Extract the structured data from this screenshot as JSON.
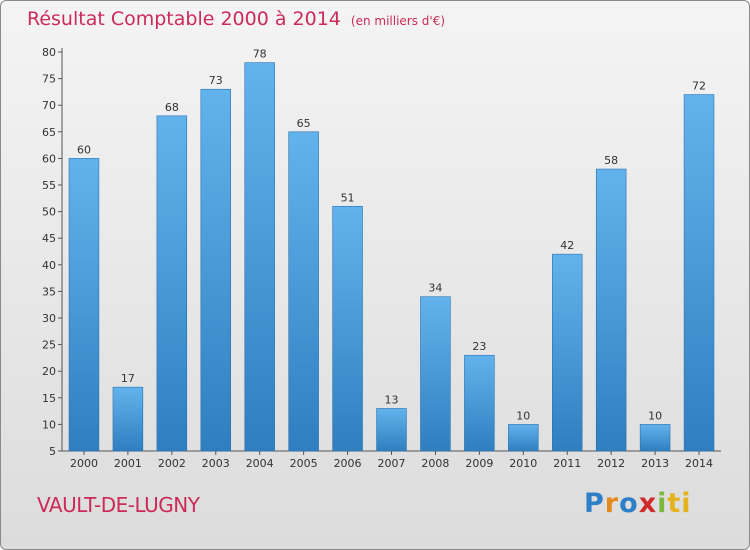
{
  "chart_data": {
    "type": "bar",
    "title": "Résultat Comptable 2000 à 2014",
    "subtitle": "(en milliers d'€)",
    "categories": [
      "2000",
      "2001",
      "2002",
      "2003",
      "2004",
      "2005",
      "2006",
      "2007",
      "2008",
      "2009",
      "2010",
      "2011",
      "2012",
      "2013",
      "2014"
    ],
    "values": [
      60,
      17,
      68,
      73,
      78,
      65,
      51,
      13,
      34,
      23,
      10,
      42,
      58,
      10,
      72
    ],
    "ylim": [
      5,
      80
    ],
    "yticks": [
      5,
      10,
      15,
      20,
      25,
      30,
      35,
      40,
      45,
      50,
      55,
      60,
      65,
      70,
      75,
      80
    ],
    "xlabel": "",
    "ylabel": "",
    "grid": false,
    "bar_color": "#4a9fdf"
  },
  "commune": "VAULT-DE-LUGNY",
  "logo": {
    "parts": [
      "P",
      "r",
      "o",
      "x",
      "i",
      "ti"
    ]
  }
}
